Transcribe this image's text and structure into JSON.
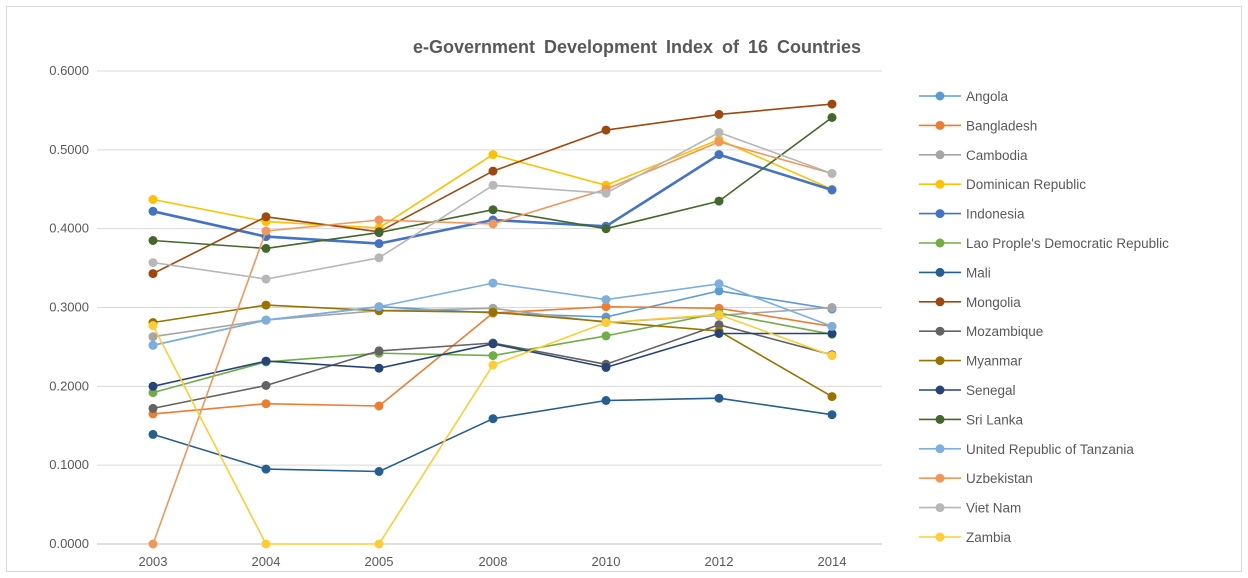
{
  "chart_data": {
    "type": "line",
    "title": "e-Government Development Index of 16 Countries",
    "xlabel": "",
    "ylabel": "",
    "categories": [
      "2003",
      "2004",
      "2005",
      "2008",
      "2010",
      "2012",
      "2014"
    ],
    "ylim": [
      0,
      0.6
    ],
    "y_ticks": [
      "0.0000",
      "0.1000",
      "0.2000",
      "0.3000",
      "0.4000",
      "0.5000",
      "0.6000"
    ],
    "grid": true,
    "legend_position": "right",
    "series": [
      {
        "name": "Angola",
        "color": "#5b9bd5",
        "values": [
          0.252,
          0.284,
          0.301,
          0.293,
          0.288,
          0.321,
          0.298
        ]
      },
      {
        "name": "Bangladesh",
        "color": "#ed7d31",
        "values": [
          0.165,
          0.178,
          0.175,
          0.293,
          0.301,
          0.299,
          0.276
        ]
      },
      {
        "name": "Cambodia",
        "color": "#a5a5a5",
        "values": [
          0.263,
          0.284,
          0.296,
          0.299,
          0.281,
          0.29,
          0.3
        ]
      },
      {
        "name": "Dominican Republic",
        "color": "#ffc000",
        "values": [
          0.437,
          0.409,
          0.401,
          0.494,
          0.455,
          0.513,
          0.45
        ]
      },
      {
        "name": "Indonesia",
        "color": "#4472c4",
        "values": [
          0.422,
          0.39,
          0.381,
          0.411,
          0.403,
          0.494,
          0.449
        ]
      },
      {
        "name": "Lao Prople's Democratic Republic",
        "color": "#70ad47",
        "values": [
          0.192,
          0.231,
          0.242,
          0.239,
          0.264,
          0.293,
          0.266
        ]
      },
      {
        "name": "Mali",
        "color": "#255e91",
        "values": [
          0.139,
          0.095,
          0.092,
          0.159,
          0.182,
          0.185,
          0.164
        ]
      },
      {
        "name": "Mongolia",
        "color": "#9e480e",
        "values": [
          0.343,
          0.415,
          0.396,
          0.473,
          0.525,
          0.545,
          0.558
        ]
      },
      {
        "name": "Mozambique",
        "color": "#636363",
        "values": [
          0.172,
          0.201,
          0.245,
          0.255,
          0.228,
          0.278,
          0.24
        ]
      },
      {
        "name": "Myanmar",
        "color": "#997300",
        "values": [
          0.281,
          0.303,
          0.296,
          0.294,
          0.282,
          0.27,
          0.187
        ]
      },
      {
        "name": "Senegal",
        "color": "#264478",
        "values": [
          0.2,
          0.232,
          0.223,
          0.254,
          0.224,
          0.267,
          0.267
        ]
      },
      {
        "name": "Sri Lanka",
        "color": "#43682b",
        "values": [
          0.385,
          0.375,
          0.395,
          0.424,
          0.4,
          0.435,
          0.541
        ]
      },
      {
        "name": "United Republic of Tanzania",
        "color": "#7cafdd",
        "values": [
          0.252,
          0.284,
          0.301,
          0.331,
          0.31,
          0.33,
          0.276
        ]
      },
      {
        "name": "Uzbekistan",
        "color": "#f1975a",
        "values": [
          0.0,
          0.397,
          0.411,
          0.406,
          0.45,
          0.51,
          0.47
        ]
      },
      {
        "name": "Viet Nam",
        "color": "#b7b7b7",
        "values": [
          0.357,
          0.336,
          0.363,
          0.455,
          0.445,
          0.522,
          0.47
        ]
      },
      {
        "name": "Zambia",
        "color": "#ffcd33",
        "values": [
          0.277,
          0.0,
          0.0,
          0.227,
          0.281,
          0.291,
          0.239
        ]
      }
    ]
  }
}
